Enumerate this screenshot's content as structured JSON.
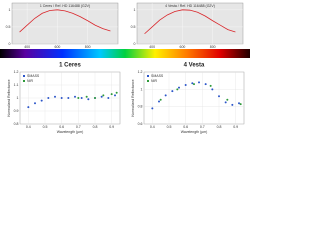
{
  "chart_data": [
    {
      "type": "line",
      "title": "1 Ceres / Ref. HD 116488 (G2V)",
      "x": [
        350,
        400,
        450,
        500,
        550,
        600,
        650,
        700,
        750,
        800,
        850,
        900,
        950
      ],
      "series": [
        {
          "name": "Ceres",
          "color": "#d9262b",
          "values": [
            0.35,
            0.55,
            0.75,
            0.9,
            0.98,
            1.0,
            0.97,
            0.9,
            0.8,
            0.68,
            0.55,
            0.45,
            0.38
          ]
        }
      ],
      "xlim": [
        300,
        1000
      ],
      "ylim": [
        0,
        1.2
      ],
      "xticks": [
        400,
        600,
        800
      ],
      "yticks": [
        0,
        0.5,
        1
      ],
      "grid": true
    },
    {
      "type": "line",
      "title": "4 Vesta / Ref. HD 116488 (G2V)",
      "x": [
        350,
        400,
        450,
        500,
        550,
        600,
        650,
        700,
        750,
        800,
        850,
        900,
        950
      ],
      "series": [
        {
          "name": "Vesta",
          "color": "#d9262b",
          "values": [
            0.3,
            0.5,
            0.7,
            0.85,
            0.95,
            1.0,
            0.99,
            0.93,
            0.82,
            0.68,
            0.55,
            0.42,
            0.35
          ]
        }
      ],
      "xlim": [
        300,
        1000
      ],
      "ylim": [
        0,
        1.2
      ],
      "xticks": [
        400,
        600,
        800
      ],
      "yticks": [
        0,
        0.5,
        1
      ],
      "grid": true
    },
    {
      "type": "scatter",
      "title": "1 Ceres",
      "x_label": "Wavelength (µm)",
      "y_label": "Normalized Reflectance",
      "series": [
        {
          "name": "SMASS",
          "color": "#2b55c9",
          "x": [
            0.4,
            0.44,
            0.48,
            0.52,
            0.56,
            0.6,
            0.64,
            0.68,
            0.72,
            0.76,
            0.8,
            0.84,
            0.88,
            0.92
          ],
          "values": [
            0.93,
            0.96,
            0.98,
            1.0,
            1.01,
            1.0,
            1.0,
            1.01,
            1.0,
            0.99,
            1.0,
            1.01,
            1.0,
            1.02
          ]
        },
        {
          "name": "NIR",
          "color": "#2e9a3a",
          "x": [
            0.7,
            0.75,
            0.8,
            0.85,
            0.9,
            0.93
          ],
          "values": [
            1.0,
            1.01,
            1.0,
            1.02,
            1.03,
            1.04
          ]
        }
      ],
      "xlim": [
        0.35,
        0.95
      ],
      "ylim": [
        0.8,
        1.2
      ],
      "xticks": [
        0.4,
        0.5,
        0.6,
        0.7,
        0.8,
        0.9
      ],
      "yticks": [
        0.8,
        0.9,
        1,
        1.1,
        1.2
      ],
      "grid": true
    },
    {
      "type": "scatter",
      "title": "4 Vesta",
      "x_label": "Wavelength (µm)",
      "y_label": "Normalized Reflectance",
      "series": [
        {
          "name": "SMASS",
          "color": "#2b55c9",
          "x": [
            0.4,
            0.44,
            0.48,
            0.52,
            0.56,
            0.6,
            0.64,
            0.68,
            0.72,
            0.76,
            0.8,
            0.84,
            0.88,
            0.92
          ],
          "values": [
            0.78,
            0.86,
            0.93,
            0.98,
            1.02,
            1.05,
            1.07,
            1.08,
            1.06,
            1.0,
            0.92,
            0.85,
            0.82,
            0.84
          ]
        },
        {
          "name": "NIR",
          "color": "#2e9a3a",
          "x": [
            0.45,
            0.55,
            0.65,
            0.75,
            0.85,
            0.93
          ],
          "values": [
            0.88,
            1.0,
            1.06,
            1.04,
            0.88,
            0.83
          ]
        }
      ],
      "xlim": [
        0.35,
        0.95
      ],
      "ylim": [
        0.6,
        1.2
      ],
      "xticks": [
        0.4,
        0.5,
        0.6,
        0.7,
        0.8,
        0.9
      ],
      "yticks": [
        0.6,
        0.8,
        1,
        1.2
      ],
      "grid": true
    }
  ]
}
